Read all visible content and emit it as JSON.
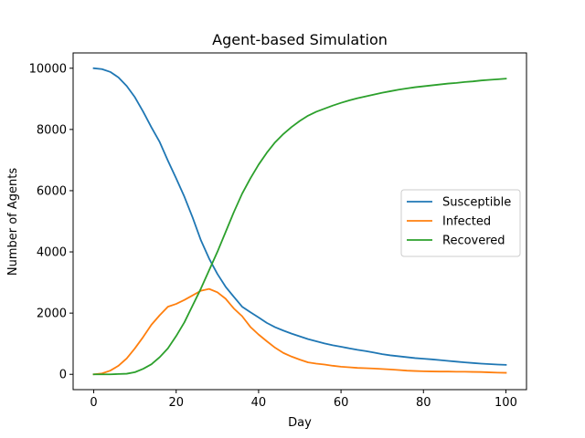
{
  "chart_data": {
    "type": "line",
    "title": "Agent-based Simulation",
    "xlabel": "Day",
    "ylabel": "Number of Agents",
    "xlim": [
      -5,
      105
    ],
    "ylim": [
      -500,
      10500
    ],
    "xticks": [
      0,
      20,
      40,
      60,
      80,
      100
    ],
    "yticks": [
      0,
      2000,
      4000,
      6000,
      8000,
      10000
    ],
    "xtick_labels": [
      "0",
      "20",
      "40",
      "60",
      "80",
      "100"
    ],
    "ytick_labels": [
      "0",
      "2000",
      "4000",
      "6000",
      "8000",
      "10000"
    ],
    "grid": false,
    "legend_position": "center-right",
    "series": [
      {
        "name": "Susceptible",
        "color": "#1f77b4",
        "x": [
          0,
          2,
          4,
          6,
          8,
          10,
          12,
          14,
          16,
          18,
          20,
          22,
          24,
          26,
          28,
          30,
          32,
          34,
          36,
          38,
          40,
          42,
          44,
          46,
          48,
          50,
          52,
          54,
          56,
          58,
          60,
          62,
          64,
          66,
          68,
          70,
          72,
          74,
          76,
          78,
          80,
          82,
          84,
          86,
          88,
          90,
          92,
          94,
          96,
          98,
          100
        ],
        "y": [
          10000,
          9970,
          9880,
          9700,
          9420,
          9050,
          8580,
          8070,
          7590,
          6980,
          6400,
          5800,
          5120,
          4380,
          3780,
          3280,
          2860,
          2530,
          2210,
          2030,
          1860,
          1680,
          1540,
          1430,
          1330,
          1240,
          1150,
          1080,
          1010,
          950,
          900,
          850,
          800,
          760,
          710,
          660,
          620,
          590,
          560,
          530,
          510,
          490,
          465,
          440,
          415,
          390,
          370,
          350,
          335,
          320,
          310
        ]
      },
      {
        "name": "Infected",
        "color": "#ff7f0e",
        "x": [
          0,
          2,
          4,
          6,
          8,
          10,
          12,
          14,
          16,
          18,
          20,
          22,
          24,
          26,
          28,
          30,
          32,
          34,
          36,
          38,
          40,
          42,
          44,
          46,
          48,
          50,
          52,
          54,
          56,
          58,
          60,
          62,
          64,
          66,
          68,
          70,
          72,
          74,
          76,
          78,
          80,
          82,
          84,
          86,
          88,
          90,
          92,
          94,
          96,
          98,
          100
        ],
        "y": [
          0,
          30,
          120,
          280,
          520,
          850,
          1220,
          1620,
          1930,
          2210,
          2300,
          2430,
          2580,
          2730,
          2790,
          2680,
          2470,
          2150,
          1900,
          1550,
          1300,
          1080,
          870,
          700,
          580,
          480,
          390,
          350,
          320,
          280,
          250,
          230,
          210,
          200,
          190,
          175,
          160,
          140,
          120,
          110,
          100,
          95,
          90,
          90,
          85,
          85,
          80,
          75,
          65,
          55,
          50
        ]
      },
      {
        "name": "Recovered",
        "color": "#2ca02c",
        "x": [
          0,
          2,
          4,
          6,
          8,
          10,
          12,
          14,
          16,
          18,
          20,
          22,
          24,
          26,
          28,
          30,
          32,
          34,
          36,
          38,
          40,
          42,
          44,
          46,
          48,
          50,
          52,
          54,
          56,
          58,
          60,
          62,
          64,
          66,
          68,
          70,
          72,
          74,
          76,
          78,
          80,
          82,
          84,
          86,
          88,
          90,
          92,
          94,
          96,
          98,
          100
        ],
        "y": [
          0,
          0,
          0,
          10,
          20,
          70,
          180,
          330,
          560,
          850,
          1250,
          1700,
          2250,
          2800,
          3400,
          4000,
          4650,
          5300,
          5900,
          6400,
          6850,
          7240,
          7580,
          7850,
          8080,
          8280,
          8450,
          8580,
          8680,
          8780,
          8870,
          8950,
          9020,
          9080,
          9140,
          9200,
          9250,
          9300,
          9340,
          9380,
          9410,
          9440,
          9470,
          9500,
          9520,
          9550,
          9570,
          9600,
          9620,
          9640,
          9660
        ]
      }
    ]
  }
}
